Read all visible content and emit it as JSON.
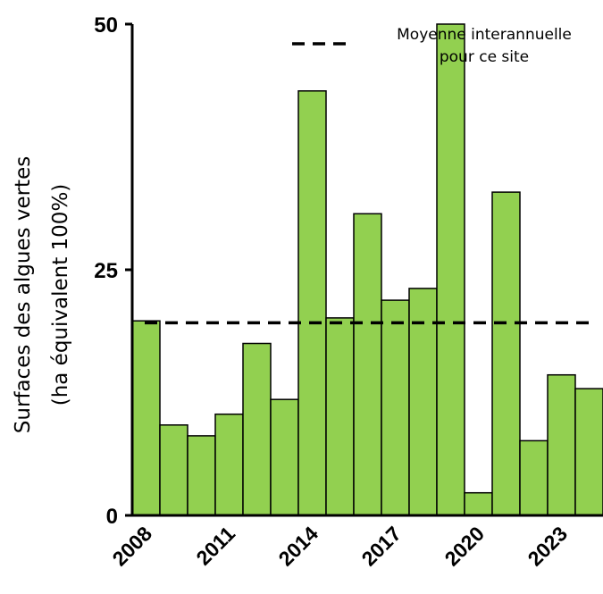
{
  "chart_data": {
    "type": "bar",
    "categories": [
      "2008",
      "2009",
      "2010",
      "2011",
      "2012",
      "2013",
      "2014",
      "2015",
      "2016",
      "2017",
      "2018",
      "2019",
      "2020",
      "2021",
      "2022",
      "2023",
      "2024"
    ],
    "values": [
      19.8,
      9.2,
      8.1,
      10.3,
      17.5,
      11.8,
      43.2,
      20.1,
      30.7,
      21.9,
      23.1,
      50.0,
      2.3,
      32.9,
      7.6,
      14.3,
      12.9
    ],
    "x_tick_labels": [
      "2008",
      "2011",
      "2014",
      "2017",
      "2020",
      "2023"
    ],
    "y_ticks": [
      0,
      25,
      50
    ],
    "ylim": [
      0,
      50
    ],
    "ylabel_line1": "Surfaces des algues vertes",
    "ylabel_line2": "(ha équivalent 100%)",
    "mean_value": 19.6,
    "legend_label_line1": "Moyenne interannuelle",
    "legend_label_line2": "pour ce site",
    "bar_color": "#92d050",
    "line_color": "#000000",
    "grid": false,
    "legend_position": "top-right"
  }
}
